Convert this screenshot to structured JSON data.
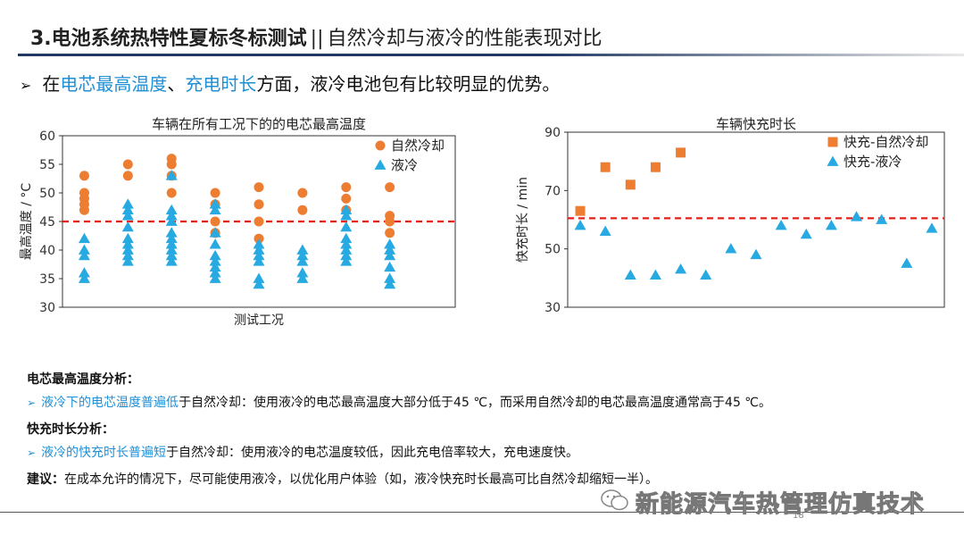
{
  "header": {
    "title_bold": "3.电池系统热特性夏标冬标测试",
    "title_sep": "||",
    "title_rest": "自然冷却与液冷的性能表现对比"
  },
  "bullet": {
    "pre": "在",
    "hl1": "电芯最高温度",
    "mid": "、",
    "hl2": "充电时长",
    "post": "方面，液冷电池包有比较明显的优势。"
  },
  "colors": {
    "orange": "#ed7d31",
    "blue": "#27a9e1",
    "red": "#e0201b",
    "accent": "#1f8fd6"
  },
  "chart_data": [
    {
      "type": "scatter",
      "title": "车辆在所有工况下的的电芯最高温度",
      "xlabel": "测试工况",
      "ylabel": "最高温度 / °C",
      "ylim": [
        30,
        60
      ],
      "yticks": [
        30,
        35,
        40,
        45,
        50,
        55,
        60
      ],
      "reference_line": 45,
      "categories": 9,
      "series": [
        {
          "name": "自然冷却",
          "marker": "circle",
          "points": [
            [
              1,
              53
            ],
            [
              1,
              50
            ],
            [
              1,
              49
            ],
            [
              1,
              48
            ],
            [
              1,
              47
            ],
            [
              2,
              55
            ],
            [
              2,
              53
            ],
            [
              3,
              56
            ],
            [
              3,
              55
            ],
            [
              3,
              53
            ],
            [
              3,
              50
            ],
            [
              4,
              50
            ],
            [
              4,
              48
            ],
            [
              4,
              45
            ],
            [
              4,
              43
            ],
            [
              5,
              51
            ],
            [
              5,
              48
            ],
            [
              5,
              45
            ],
            [
              5,
              42
            ],
            [
              6,
              50
            ],
            [
              6,
              47
            ],
            [
              7,
              51
            ],
            [
              7,
              49
            ],
            [
              7,
              47
            ],
            [
              8,
              51
            ],
            [
              8,
              46
            ],
            [
              8,
              45
            ],
            [
              8,
              43
            ]
          ]
        },
        {
          "name": "液冷",
          "marker": "triangle",
          "points": [
            [
              1,
              42
            ],
            [
              1,
              40
            ],
            [
              1,
              39
            ],
            [
              1,
              36
            ],
            [
              1,
              35
            ],
            [
              2,
              48
            ],
            [
              2,
              47
            ],
            [
              2,
              46
            ],
            [
              2,
              44
            ],
            [
              2,
              42
            ],
            [
              2,
              41
            ],
            [
              2,
              40
            ],
            [
              2,
              39
            ],
            [
              2,
              38
            ],
            [
              3,
              53
            ],
            [
              3,
              47
            ],
            [
              3,
              46
            ],
            [
              3,
              45
            ],
            [
              3,
              43
            ],
            [
              3,
              42
            ],
            [
              3,
              41
            ],
            [
              3,
              40
            ],
            [
              3,
              39
            ],
            [
              3,
              38
            ],
            [
              4,
              48
            ],
            [
              4,
              47
            ],
            [
              4,
              43
            ],
            [
              4,
              41
            ],
            [
              4,
              39
            ],
            [
              4,
              38
            ],
            [
              4,
              37
            ],
            [
              4,
              36
            ],
            [
              4,
              35
            ],
            [
              5,
              41
            ],
            [
              5,
              40
            ],
            [
              5,
              39
            ],
            [
              5,
              38
            ],
            [
              5,
              35
            ],
            [
              5,
              34
            ],
            [
              6,
              40
            ],
            [
              6,
              39
            ],
            [
              6,
              38
            ],
            [
              6,
              36
            ],
            [
              6,
              35
            ],
            [
              7,
              47
            ],
            [
              7,
              46
            ],
            [
              7,
              44
            ],
            [
              7,
              42
            ],
            [
              7,
              41
            ],
            [
              7,
              40
            ],
            [
              7,
              39
            ],
            [
              7,
              38
            ],
            [
              8,
              41
            ],
            [
              8,
              40
            ],
            [
              8,
              39
            ],
            [
              8,
              37
            ],
            [
              8,
              35
            ],
            [
              8,
              34
            ]
          ]
        }
      ]
    },
    {
      "type": "scatter",
      "title": "车辆快充时长",
      "xlabel": "",
      "ylabel": "快充时长 / min",
      "ylim": [
        30,
        90
      ],
      "yticks": [
        30,
        50,
        70,
        90
      ],
      "reference_line": 60.5,
      "categories": 15,
      "series": [
        {
          "name": "快充-自然冷却",
          "marker": "square",
          "points": [
            [
              1,
              63
            ],
            [
              2,
              78
            ],
            [
              3,
              72
            ],
            [
              4,
              78
            ],
            [
              5,
              83
            ]
          ]
        },
        {
          "name": "快充-液冷",
          "marker": "triangle",
          "points": [
            [
              1,
              58
            ],
            [
              2,
              56
            ],
            [
              3,
              41
            ],
            [
              4,
              41
            ],
            [
              5,
              43
            ],
            [
              6,
              41
            ],
            [
              7,
              50
            ],
            [
              8,
              48
            ],
            [
              9,
              58
            ],
            [
              10,
              55
            ],
            [
              11,
              58
            ],
            [
              12,
              61
            ],
            [
              13,
              60
            ],
            [
              14,
              45
            ],
            [
              15,
              57
            ]
          ]
        }
      ]
    }
  ],
  "analysis": {
    "temp_heading": "电芯最高温度分析：",
    "temp_hl": "液冷下的电芯温度普遍低",
    "temp_text": "于自然冷却：使用液冷的电芯最高温度大部分低于45 ℃，而采用自然冷却的电芯最高温度通常高于45 ℃。",
    "charge_heading": "快充时长分析：",
    "charge_hl": "液冷的快充时长普遍短",
    "charge_text": "于自然冷却：使用液冷的电芯温度较低，因此充电倍率较大，充电速度快。",
    "advice_label": "建议：",
    "advice_text": "在成本允许的情况下，尽可能使用液冷，以优化用户体验（如，液冷快充时长最高可比自然冷却缩短一半）。"
  },
  "footer": {
    "page": "18",
    "watermark": "新能源汽车热管理仿真技术"
  }
}
